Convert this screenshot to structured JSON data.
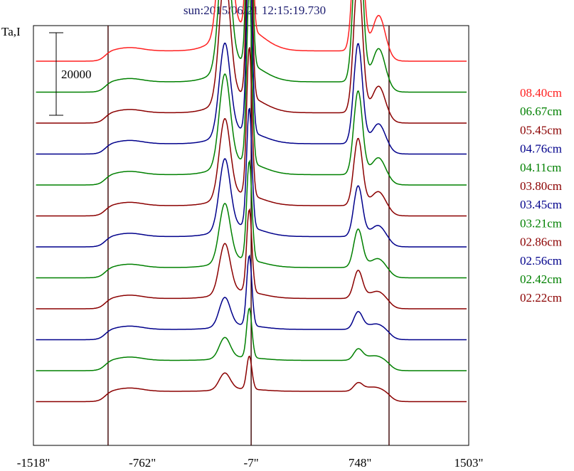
{
  "header": {
    "title": "sun:2015/06/21 12:15:19.730"
  },
  "y_axis_label": "Ta,I",
  "scale_bar": {
    "value": "20000"
  },
  "chart_data": {
    "type": "line",
    "title": "sun:2015/06/21 12:15:19.730",
    "ylabel": "Ta,I",
    "xlabel": "",
    "x_unit": "arcsec",
    "xlim": [
      -1518,
      1503
    ],
    "x_ticks": [
      -1518,
      -762,
      -7,
      748,
      1503
    ],
    "x_tick_labels": [
      "-1518\"",
      "-762\"",
      "-7\"",
      "748\"",
      "1503\""
    ],
    "vertical_markers": [
      -1000,
      -7,
      950
    ],
    "grid": false,
    "legend_position": "right",
    "scale_bar_value": 20000,
    "series": [
      {
        "name": "08.40cm",
        "color": "#ff2020",
        "baseline": 90000,
        "peak_c": 61000,
        "peak_l": 41000,
        "peak_r": 45000
      },
      {
        "name": "06.67cm",
        "color": "#008000",
        "baseline": 82500,
        "peak_c": 57000,
        "peak_l": 33000,
        "peak_r": 42000
      },
      {
        "name": "05.45cm",
        "color": "#8b0000",
        "baseline": 75000,
        "peak_c": 50000,
        "peak_l": 30000,
        "peak_r": 33000
      },
      {
        "name": "04.76cm",
        "color": "#00008b",
        "baseline": 67500,
        "peak_c": 48000,
        "peak_l": 22000,
        "peak_r": 24000
      },
      {
        "name": "04.11cm",
        "color": "#008000",
        "baseline": 60000,
        "peak_c": 42000,
        "peak_l": 22000,
        "peak_r": 20000
      },
      {
        "name": "03.80cm",
        "color": "#8b0000",
        "baseline": 52500,
        "peak_c": 36000,
        "peak_l": 19000,
        "peak_r": 16000
      },
      {
        "name": "03.45cm",
        "color": "#00008b",
        "baseline": 45000,
        "peak_c": 29000,
        "peak_l": 17000,
        "peak_r": 12000
      },
      {
        "name": "03.21cm",
        "color": "#008000",
        "baseline": 37500,
        "peak_c": 24000,
        "peak_l": 14000,
        "peak_r": 9000
      },
      {
        "name": "02.86cm",
        "color": "#8b0000",
        "baseline": 30000,
        "peak_c": 20000,
        "peak_l": 12000,
        "peak_r": 6500
      },
      {
        "name": "02.56cm",
        "color": "#00008b",
        "baseline": 22500,
        "peak_c": 17000,
        "peak_l": 7000,
        "peak_r": 4000
      },
      {
        "name": "02.42cm",
        "color": "#008000",
        "baseline": 15000,
        "peak_c": 12000,
        "peak_l": 5000,
        "peak_r": 2500
      },
      {
        "name": "02.22cm",
        "color": "#8b0000",
        "baseline": 7500,
        "peak_c": 8000,
        "peak_l": 4000,
        "peak_r": 1800
      }
    ]
  }
}
